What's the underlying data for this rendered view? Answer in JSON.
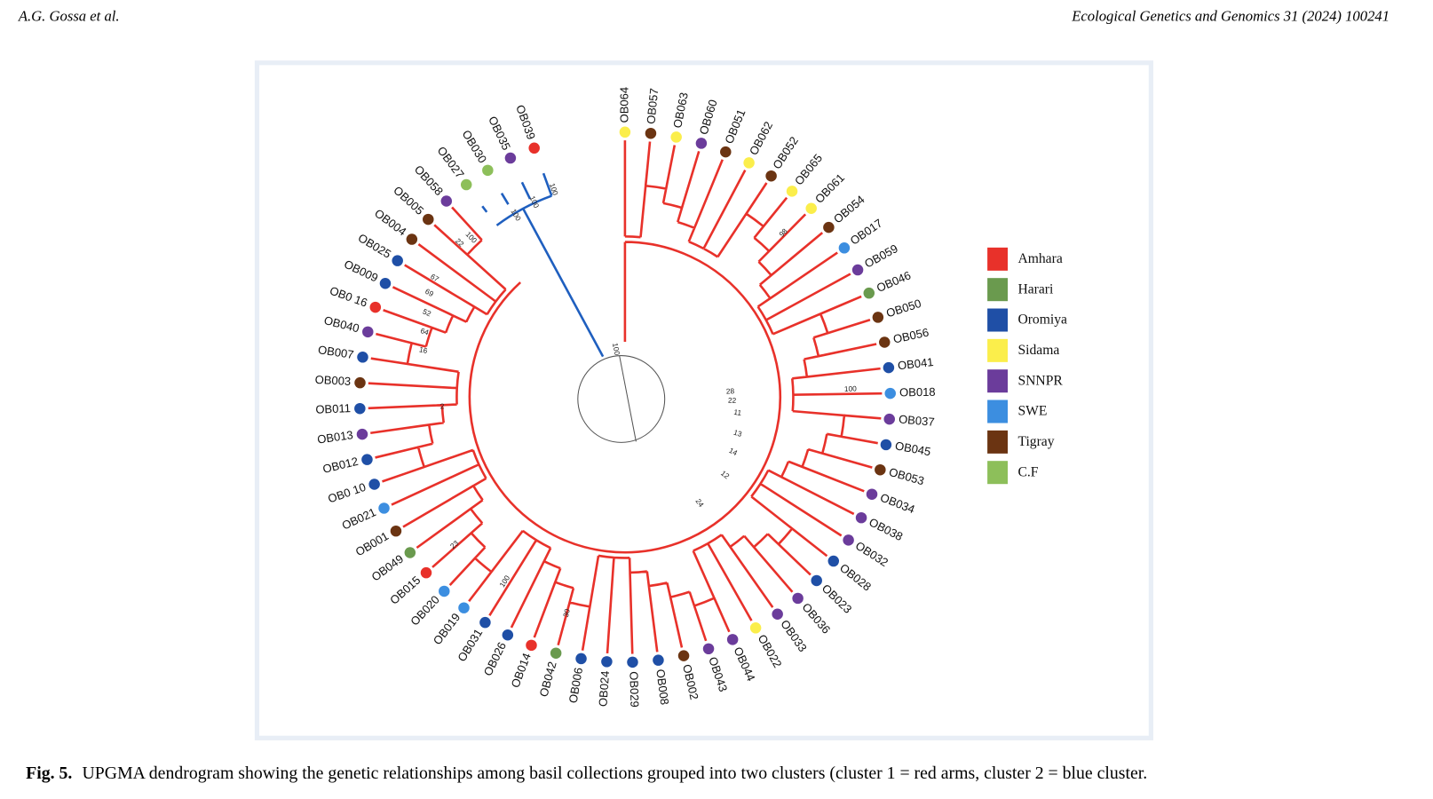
{
  "header": {
    "left": "A.G. Gossa et al.",
    "right": "Ecological Genetics and Genomics 31 (2024) 100241"
  },
  "figure": {
    "leaves": [
      {
        "label": "OB064",
        "group": "Sidama",
        "cluster": 1
      },
      {
        "label": "OB057",
        "group": "Tigray",
        "cluster": 1
      },
      {
        "label": "OB063",
        "group": "Sidama",
        "cluster": 1
      },
      {
        "label": "OB060",
        "group": "SNNPR",
        "cluster": 1
      },
      {
        "label": "OB051",
        "group": "Tigray",
        "cluster": 1
      },
      {
        "label": "OB062",
        "group": "Sidama",
        "cluster": 1
      },
      {
        "label": "OB052",
        "group": "Tigray",
        "cluster": 1
      },
      {
        "label": "OB065",
        "group": "Sidama",
        "cluster": 1
      },
      {
        "label": "OB061",
        "group": "Sidama",
        "cluster": 1
      },
      {
        "label": "OB054",
        "group": "Tigray",
        "cluster": 1
      },
      {
        "label": "OB017",
        "group": "SWE",
        "cluster": 1
      },
      {
        "label": "OB059",
        "group": "SNNPR",
        "cluster": 1
      },
      {
        "label": "OB046",
        "group": "Harari",
        "cluster": 1
      },
      {
        "label": "OB050",
        "group": "Tigray",
        "cluster": 1
      },
      {
        "label": "OB056",
        "group": "Tigray",
        "cluster": 1
      },
      {
        "label": "OB041",
        "group": "Oromiya",
        "cluster": 1
      },
      {
        "label": "OB018",
        "group": "SWE",
        "cluster": 1
      },
      {
        "label": "OB037",
        "group": "SNNPR",
        "cluster": 1
      },
      {
        "label": "OB045",
        "group": "Oromiya",
        "cluster": 1
      },
      {
        "label": "OB053",
        "group": "Tigray",
        "cluster": 1
      },
      {
        "label": "OB034",
        "group": "SNNPR",
        "cluster": 1
      },
      {
        "label": "OB038",
        "group": "SNNPR",
        "cluster": 1
      },
      {
        "label": "OB032",
        "group": "SNNPR",
        "cluster": 1
      },
      {
        "label": "OB028",
        "group": "Oromiya",
        "cluster": 1
      },
      {
        "label": "OB023",
        "group": "Oromiya",
        "cluster": 1
      },
      {
        "label": "OB036",
        "group": "SNNPR",
        "cluster": 1
      },
      {
        "label": "OB033",
        "group": "SNNPR",
        "cluster": 1
      },
      {
        "label": "OB022",
        "group": "Sidama",
        "cluster": 1
      },
      {
        "label": "OB044",
        "group": "SNNPR",
        "cluster": 1
      },
      {
        "label": "OB043",
        "group": "SNNPR",
        "cluster": 1
      },
      {
        "label": "OB002",
        "group": "Tigray",
        "cluster": 1
      },
      {
        "label": "OB008",
        "group": "Oromiya",
        "cluster": 1
      },
      {
        "label": "OB029",
        "group": "Oromiya",
        "cluster": 1
      },
      {
        "label": "OB024",
        "group": "Oromiya",
        "cluster": 1
      },
      {
        "label": "OB006",
        "group": "Oromiya",
        "cluster": 1
      },
      {
        "label": "OB042",
        "group": "Harari",
        "cluster": 1
      },
      {
        "label": "OB014",
        "group": "Amhara",
        "cluster": 1
      },
      {
        "label": "OB026",
        "group": "Oromiya",
        "cluster": 1
      },
      {
        "label": "OB031",
        "group": "Oromiya",
        "cluster": 1
      },
      {
        "label": "OB019",
        "group": "SWE",
        "cluster": 1
      },
      {
        "label": "OB020",
        "group": "SWE",
        "cluster": 1
      },
      {
        "label": "OB015",
        "group": "Amhara",
        "cluster": 1
      },
      {
        "label": "OB049",
        "group": "Harari",
        "cluster": 1
      },
      {
        "label": "OB001",
        "group": "Tigray",
        "cluster": 1
      },
      {
        "label": "OB021",
        "group": "SWE",
        "cluster": 1
      },
      {
        "label": "OB0 10",
        "group": "Oromiya",
        "cluster": 1
      },
      {
        "label": "OB012",
        "group": "Oromiya",
        "cluster": 1
      },
      {
        "label": "OB013",
        "group": "SNNPR",
        "cluster": 1
      },
      {
        "label": "OB011",
        "group": "Oromiya",
        "cluster": 1
      },
      {
        "label": "OB003",
        "group": "Tigray",
        "cluster": 1
      },
      {
        "label": "OB007",
        "group": "Oromiya",
        "cluster": 1
      },
      {
        "label": "OB040",
        "group": "SNNPR",
        "cluster": 1
      },
      {
        "label": "OB0 16",
        "group": "Amhara",
        "cluster": 1
      },
      {
        "label": "OB009",
        "group": "Oromiya",
        "cluster": 1
      },
      {
        "label": "OB025",
        "group": "Oromiya",
        "cluster": 1
      },
      {
        "label": "OB004",
        "group": "Tigray",
        "cluster": 1
      },
      {
        "label": "OB005",
        "group": "Tigray",
        "cluster": 1
      },
      {
        "label": "OB058",
        "group": "SNNPR",
        "cluster": 1
      },
      {
        "label": "OB027",
        "group": "C.F",
        "cluster": 2
      },
      {
        "label": "OB030",
        "group": "C.F",
        "cluster": 2
      },
      {
        "label": "OB035",
        "group": "SNNPR",
        "cluster": 2
      },
      {
        "label": "OB039",
        "group": "Amhara",
        "cluster": 2
      }
    ],
    "bootstrap": [
      100,
      98,
      100,
      100,
      100,
      100,
      100,
      22,
      67,
      69,
      52,
      64,
      16,
      2,
      24,
      12,
      14,
      13,
      11,
      22,
      28,
      100,
      23,
      30
    ],
    "legend": [
      {
        "label": "Amhara",
        "color": "#e8312a"
      },
      {
        "label": "Harari",
        "color": "#6a9a4e"
      },
      {
        "label": "Oromiya",
        "color": "#1f4fa6"
      },
      {
        "label": "Sidama",
        "color": "#fbee4b"
      },
      {
        "label": "SNNPR",
        "color": "#6b3c9b"
      },
      {
        "label": "SWE",
        "color": "#3c8ee0"
      },
      {
        "label": "Tigray",
        "color": "#6b3412"
      },
      {
        "label": "C.F",
        "color": "#8dbf5a"
      }
    ]
  },
  "caption": {
    "label": "Fig. 5.",
    "text": "UPGMA dendrogram showing the genetic relationships among basil collections grouped into two clusters (cluster 1 = red arms, cluster 2 = blue cluster."
  }
}
